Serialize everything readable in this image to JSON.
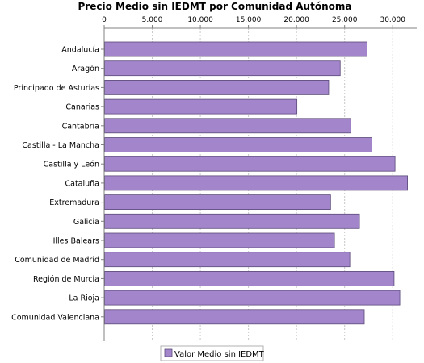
{
  "chart_data": {
    "type": "bar",
    "orientation": "horizontal",
    "title": "Precio Medio sin IEDMT por Comunidad Autónoma",
    "xlabel": "",
    "ylabel": "",
    "xlim": [
      0,
      32500
    ],
    "xticks": [
      0,
      5000,
      10000,
      15000,
      20000,
      25000,
      30000
    ],
    "xtick_labels": [
      "0",
      "5.000",
      "10.000",
      "15.000",
      "20.000",
      "25.000",
      "30.000"
    ],
    "axis_position": "top",
    "grid": true,
    "legend_position": "bottom",
    "categories": [
      "Andalucía",
      "Aragón",
      "Principado de Asturias",
      "Canarias",
      "Cantabria",
      "Castilla - La Mancha",
      "Castilla y León",
      "Cataluña",
      "Extremadura",
      "Galicia",
      "Illes Balears",
      "Comunidad de Madrid",
      "Región de Murcia",
      "La Rioja",
      "Comunidad Valenciana"
    ],
    "series": [
      {
        "name": "Valor Medio sin IEDMT",
        "color": "#a385cc",
        "values": [
          27300,
          24500,
          23300,
          20000,
          25600,
          27800,
          30200,
          31500,
          23500,
          26500,
          23900,
          25500,
          30100,
          30700,
          27000
        ]
      }
    ]
  }
}
